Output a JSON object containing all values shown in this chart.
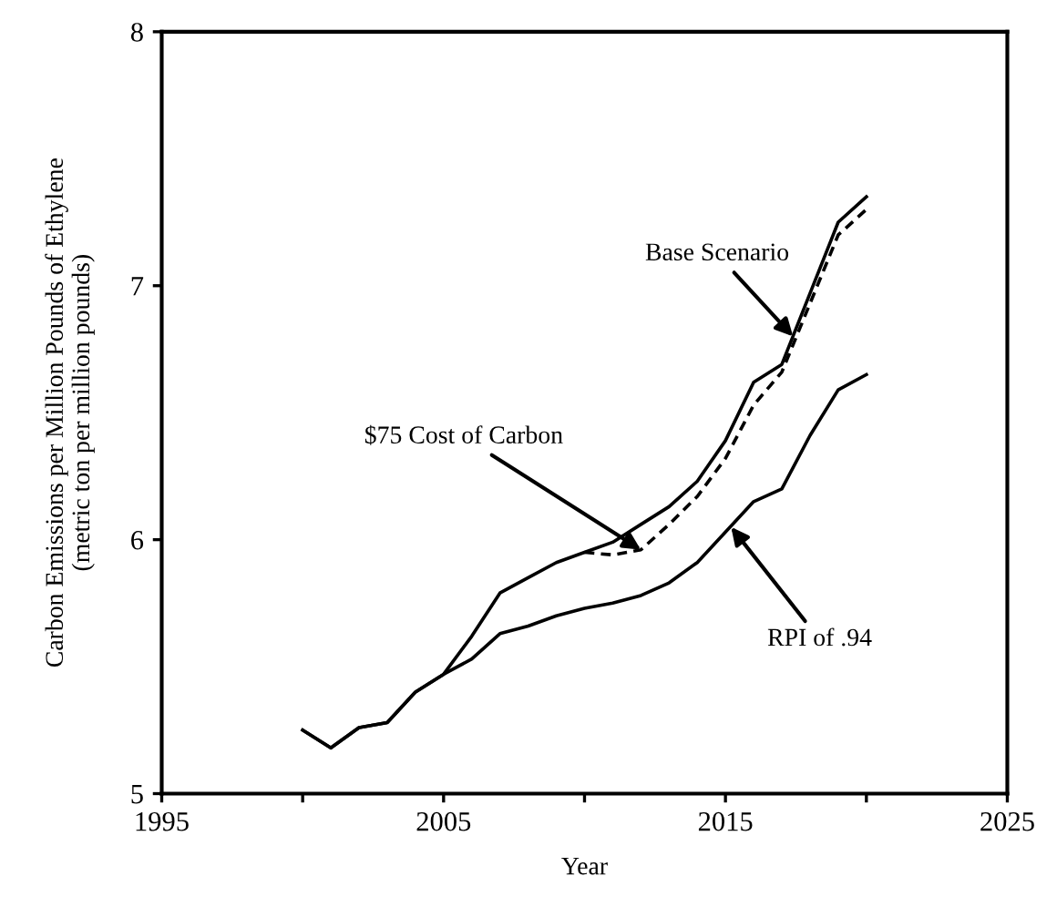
{
  "chart_data": {
    "type": "line",
    "xlabel": "Year",
    "ylabel": "Carbon Emissions per Million Pounds of Ethylene\n(metric ton per million pounds)",
    "xlim": [
      1995,
      2025
    ],
    "xticks": [
      {
        "value": 1995,
        "label": "1995"
      },
      {
        "value": 2000,
        "label": null
      },
      {
        "value": 2005,
        "label": "2005"
      },
      {
        "value": 2010,
        "label": null
      },
      {
        "value": 2015,
        "label": "2015"
      },
      {
        "value": 2020,
        "label": null
      },
      {
        "value": 2025,
        "label": "2025"
      }
    ],
    "ylim": [
      5,
      8
    ],
    "yticks": [
      5,
      6,
      7,
      8
    ],
    "grid": false,
    "legend": false,
    "marker": "none",
    "series": [
      {
        "color": "#000000",
        "line_style": "solid",
        "x": [
          2000,
          2001,
          2002,
          2003,
          2004,
          2005,
          2006,
          2007,
          2008,
          2009,
          2010,
          2011,
          2012,
          2013,
          2014,
          2015,
          2016,
          2017,
          2018,
          2019,
          2020
        ],
        "values": [
          5.25,
          5.18,
          5.26,
          5.28,
          5.4,
          5.47,
          5.62,
          5.79,
          5.85,
          5.91,
          5.95,
          5.99,
          6.06,
          6.13,
          6.23,
          6.39,
          6.62,
          6.69,
          6.97,
          7.25,
          7.35
        ]
      },
      {
        "color": "#000000",
        "line_style": "dashed",
        "x": [
          2010,
          2011,
          2012,
          2013,
          2014,
          2015,
          2016,
          2017,
          2018,
          2019,
          2020
        ],
        "values": [
          5.95,
          5.94,
          5.96,
          6.06,
          6.17,
          6.32,
          6.53,
          6.66,
          6.93,
          7.2,
          7.3
        ]
      },
      {
        "color": "#000000",
        "line_style": "solid",
        "x": [
          2000,
          2001,
          2002,
          2003,
          2004,
          2005,
          2006,
          2007,
          2008,
          2009,
          2010,
          2011,
          2012,
          2013,
          2014,
          2015,
          2016,
          2017,
          2018,
          2019,
          2020
        ],
        "values": [
          5.25,
          5.18,
          5.26,
          5.28,
          5.4,
          5.47,
          5.53,
          5.63,
          5.66,
          5.7,
          5.73,
          5.75,
          5.78,
          5.83,
          5.91,
          6.03,
          6.15,
          6.2,
          6.41,
          6.59,
          6.65
        ]
      }
    ],
    "annotations": [
      {
        "text": "Base Scenario",
        "x": 2017.4,
        "y": 6.8
      },
      {
        "text": "$75 Cost of Carbon",
        "x": 2012,
        "y": 5.96
      },
      {
        "text": "RPI of .94",
        "x": 2015.2,
        "y": 6.05
      }
    ]
  }
}
